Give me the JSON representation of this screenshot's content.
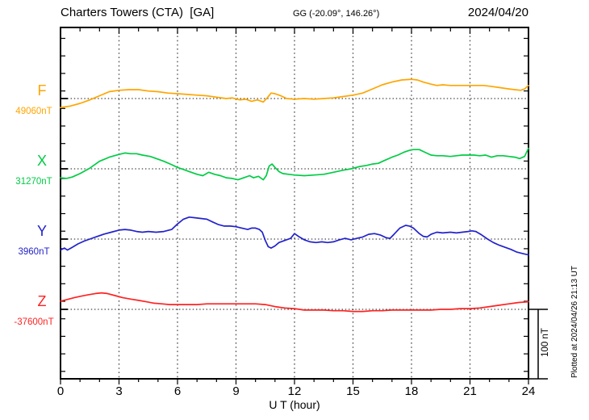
{
  "header": {
    "station_title": "Charters Towers (CTA)  [GA]",
    "coordinates": "GG (-20.09°, 146.26°)",
    "date": "2024/04/20"
  },
  "footer": {
    "x_axis_title": "U T (hour)",
    "plotted_at": "Plotted at 2024/04/26 21:13 UT"
  },
  "scale_bar": {
    "label": "100 nT",
    "nT": 100
  },
  "chart_data": {
    "type": "line",
    "title": "Charters Towers (CTA) [GA] magnetogram 2024/04/20",
    "xlabel": "U T (hour)",
    "xlim": [
      0,
      24
    ],
    "x_major_ticks": [
      0,
      3,
      6,
      9,
      12,
      15,
      18,
      21,
      24
    ],
    "x_gridlines_hours": [
      3,
      6,
      9,
      12,
      15,
      18,
      21
    ],
    "x_minor_tick_every_hours": 1,
    "grid": "dotted",
    "legend_position": "left-margin",
    "amplitude_reference": "100 nT scale bar at right",
    "series": [
      {
        "name": "F",
        "color": "#FFA500",
        "baseline_value_label": "49060nT",
        "baseline_nT": 49060,
        "hours": [
          0,
          0.5,
          1,
          1.5,
          2,
          2.5,
          3,
          3.5,
          4,
          4.5,
          5,
          5.5,
          6,
          6.5,
          7,
          7.5,
          8,
          8.5,
          8.8,
          9.2,
          9.5,
          9.8,
          10.1,
          10.4,
          10.6,
          10.8,
          11,
          11.3,
          11.6,
          12,
          12.5,
          13,
          13.5,
          14,
          14.5,
          15,
          15.5,
          16,
          16.5,
          17,
          17.5,
          18,
          18.3,
          18.6,
          19,
          19.3,
          19.6,
          20,
          20.3,
          20.7,
          21,
          21.3,
          21.7,
          22,
          22.5,
          23,
          23.3,
          23.6,
          23.8,
          24
        ],
        "offset_nT": [
          -13,
          -11,
          -7,
          -2,
          4,
          10,
          12,
          13,
          13,
          11,
          10,
          8,
          7,
          6,
          5,
          4,
          2,
          0,
          1,
          -2,
          -1,
          -4,
          -2,
          -5,
          1,
          8,
          7,
          4,
          0,
          -1,
          0,
          -1,
          0,
          1,
          3,
          5,
          8,
          14,
          20,
          24,
          27,
          28,
          27,
          24,
          21,
          19,
          20,
          19,
          19,
          19,
          19,
          19,
          19,
          18,
          16,
          14,
          13,
          12,
          14,
          19
        ]
      },
      {
        "name": "X",
        "color": "#00CC44",
        "baseline_value_label": "31270nT",
        "baseline_nT": 31270,
        "hours": [
          0,
          0.3,
          0.6,
          1,
          1.5,
          2,
          2.5,
          3,
          3.3,
          3.6,
          3.9,
          4.2,
          4.6,
          5,
          5.3,
          5.7,
          6,
          6.3,
          6.6,
          7,
          7.3,
          7.6,
          7.9,
          8.2,
          8.5,
          8.8,
          9.1,
          9.4,
          9.7,
          9.9,
          10.15,
          10.4,
          10.55,
          10.7,
          10.85,
          11,
          11.2,
          11.4,
          11.7,
          12,
          12.5,
          13,
          13.5,
          14,
          14.5,
          14.9,
          15.3,
          15.7,
          16,
          16.3,
          16.6,
          17,
          17.3,
          17.6,
          17.9,
          18.1,
          18.4,
          18.7,
          19,
          19.3,
          19.6,
          20,
          20.3,
          20.6,
          20.9,
          21.2,
          21.5,
          21.8,
          22.1,
          22.4,
          22.7,
          23,
          23.3,
          23.55,
          23.8,
          24
        ],
        "offset_nT": [
          -13,
          -14,
          -12,
          -7,
          1,
          11,
          17,
          21,
          23,
          22,
          22,
          20,
          18,
          14,
          11,
          6,
          2,
          -1,
          -4,
          -8,
          -10,
          -5,
          -8,
          -10,
          -13,
          -14,
          -16,
          -13,
          -10,
          -13,
          -11,
          -16,
          -10,
          4,
          7,
          2,
          -4,
          -7,
          -8,
          -9,
          -10,
          -9,
          -8,
          -5,
          -2,
          0,
          3,
          5,
          7,
          8,
          12,
          17,
          20,
          24,
          27,
          28,
          28,
          24,
          20,
          19,
          19,
          18,
          19,
          20,
          20,
          20,
          19,
          20,
          17,
          19,
          19,
          18,
          17,
          15,
          18,
          30
        ]
      },
      {
        "name": "Y",
        "color": "#2222CC",
        "baseline_value_label": "3960nT",
        "baseline_nT": 3960,
        "hours": [
          0,
          0.2,
          0.35,
          0.6,
          0.9,
          1.2,
          1.5,
          1.8,
          2.2,
          2.6,
          3,
          3.3,
          3.6,
          3.9,
          4.2,
          4.5,
          4.9,
          5.3,
          5.7,
          6,
          6.3,
          6.6,
          6.9,
          7.2,
          7.5,
          7.8,
          8.1,
          8.4,
          8.7,
          9,
          9.3,
          9.6,
          9.8,
          10,
          10.2,
          10.35,
          10.5,
          10.65,
          10.8,
          11,
          11.2,
          11.5,
          11.8,
          12,
          12.2,
          12.5,
          12.8,
          13.1,
          13.4,
          13.7,
          14,
          14.3,
          14.6,
          14.9,
          15.2,
          15.5,
          15.8,
          16.1,
          16.4,
          16.7,
          16.9,
          17.1,
          17.4,
          17.7,
          17.9,
          18.1,
          18.4,
          18.6,
          18.8,
          19,
          19.3,
          19.6,
          20,
          20.3,
          20.6,
          20.9,
          21.1,
          21.3,
          21.6,
          21.9,
          22.2,
          22.5,
          22.8,
          23.1,
          23.4,
          23.7,
          24
        ],
        "offset_nT": [
          -16,
          -13,
          -16,
          -12,
          -7,
          -3,
          0,
          3,
          7,
          10,
          13,
          14,
          13,
          11,
          10,
          11,
          10,
          11,
          14,
          22,
          29,
          32,
          31,
          30,
          29,
          25,
          21,
          19,
          19,
          18,
          16,
          14,
          16,
          16,
          14,
          10,
          -2,
          -11,
          -13,
          -10,
          -5,
          -2,
          1,
          8,
          4,
          -1,
          -4,
          -5,
          -4,
          -5,
          -4,
          -1,
          1,
          -1,
          1,
          3,
          7,
          8,
          6,
          2,
          1,
          7,
          16,
          20,
          19,
          16,
          8,
          4,
          3,
          7,
          10,
          9,
          10,
          9,
          10,
          11,
          12,
          11,
          6,
          0,
          -5,
          -9,
          -12,
          -15,
          -19,
          -21,
          -23
        ]
      },
      {
        "name": "Z",
        "color": "#FF2222",
        "baseline_value_label": "-37600nT",
        "baseline_nT": -37600,
        "hours": [
          0,
          0.3,
          0.7,
          1,
          1.4,
          1.8,
          2.1,
          2.4,
          2.8,
          3.2,
          3.6,
          4,
          4.4,
          4.8,
          5.2,
          5.6,
          6,
          6.5,
          7,
          7.5,
          8,
          8.5,
          9,
          9.5,
          10,
          10.5,
          11,
          11.5,
          12,
          12.5,
          13,
          13.5,
          14,
          14.5,
          15,
          15.5,
          16,
          16.5,
          17,
          17.5,
          18,
          18.5,
          19,
          19.5,
          20,
          20.5,
          21,
          21.5,
          22,
          22.5,
          23,
          23.5,
          24
        ],
        "offset_nT": [
          12,
          14,
          17,
          19,
          21,
          23,
          24,
          23,
          20,
          17,
          15,
          13,
          11,
          9,
          8,
          7,
          7,
          7,
          7,
          8,
          8,
          8,
          8,
          8,
          8,
          7,
          4,
          2,
          1,
          -1,
          -1,
          -1,
          -2,
          -2,
          -3,
          -3,
          -2,
          -2,
          -1,
          -1,
          -1,
          -1,
          -1,
          0,
          0,
          1,
          1,
          2,
          4,
          6,
          8,
          10,
          11
        ]
      }
    ]
  }
}
